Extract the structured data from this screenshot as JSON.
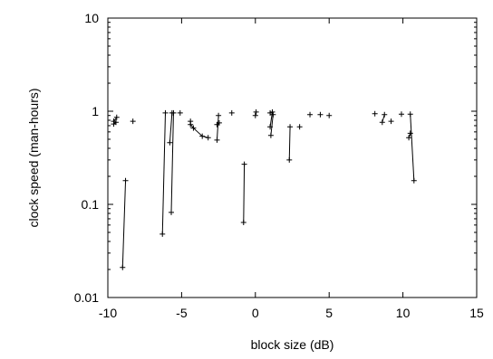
{
  "chart_data": {
    "type": "scatter",
    "title": "",
    "xlabel": "block size (dB)",
    "ylabel": "clock speed (man-hours)",
    "x_scale": "linear",
    "y_scale": "log",
    "xlim": [
      -10,
      15
    ],
    "ylim": [
      0.01,
      10
    ],
    "x_ticks": [
      -10,
      -5,
      0,
      5,
      10,
      15
    ],
    "x_tick_labels": [
      "-10",
      "-5",
      "0",
      "5",
      "10",
      "15"
    ],
    "y_ticks": [
      0.01,
      0.1,
      1,
      10
    ],
    "y_tick_labels": [
      "0.01",
      "0.1",
      "1",
      "10"
    ],
    "grid": false,
    "legend": "none",
    "marker": "plus",
    "colors": {
      "marks": "#000000",
      "axes": "#000000"
    },
    "series": [
      {
        "x": [
          -9.6,
          -9.4
        ],
        "y": [
          0.78,
          0.86
        ]
      },
      {
        "x": [
          -9.6,
          -9.45
        ],
        "y": [
          0.73,
          0.76
        ]
      },
      {
        "x": [
          -9.0,
          -8.8
        ],
        "y": [
          0.021,
          0.18
        ]
      },
      {
        "x": [
          -8.3
        ],
        "y": [
          0.78
        ]
      },
      {
        "x": [
          -6.3,
          -6.1
        ],
        "y": [
          0.048,
          0.96
        ]
      },
      {
        "x": [
          -5.8,
          -5.65
        ],
        "y": [
          0.46,
          0.96
        ]
      },
      {
        "x": [
          -5.7,
          -5.55
        ],
        "y": [
          0.082,
          0.96
        ]
      },
      {
        "x": [
          -5.1
        ],
        "y": [
          0.96
        ]
      },
      {
        "x": [
          -4.4,
          -4.4,
          -4.2,
          -3.6,
          -3.2
        ],
        "y": [
          0.78,
          0.72,
          0.66,
          0.54,
          0.52
        ]
      },
      {
        "x": [
          -2.6,
          -2.5
        ],
        "y": [
          0.49,
          0.9
        ]
      },
      {
        "x": [
          -2.6,
          -2.45
        ],
        "y": [
          0.72,
          0.75
        ]
      },
      {
        "x": [
          -1.6
        ],
        "y": [
          0.96
        ]
      },
      {
        "x": [
          -0.8,
          -0.75
        ],
        "y": [
          0.064,
          0.27
        ]
      },
      {
        "x": [
          0.0,
          0.05
        ],
        "y": [
          0.9,
          0.98
        ]
      },
      {
        "x": [
          1.0
        ],
        "y": [
          0.96
        ]
      },
      {
        "x": [
          1.05,
          1.2
        ],
        "y": [
          0.55,
          0.92
        ]
      },
      {
        "x": [
          1.0,
          1.15
        ],
        "y": [
          0.68,
          0.98
        ]
      },
      {
        "x": [
          2.3,
          2.35
        ],
        "y": [
          0.3,
          0.68
        ]
      },
      {
        "x": [
          3.0
        ],
        "y": [
          0.68
        ]
      },
      {
        "x": [
          3.7
        ],
        "y": [
          0.92
        ]
      },
      {
        "x": [
          4.4
        ],
        "y": [
          0.92
        ]
      },
      {
        "x": [
          5.0
        ],
        "y": [
          0.9
        ]
      },
      {
        "x": [
          8.1
        ],
        "y": [
          0.94
        ]
      },
      {
        "x": [
          8.6,
          8.75
        ],
        "y": [
          0.76,
          0.92
        ]
      },
      {
        "x": [
          9.2
        ],
        "y": [
          0.78
        ]
      },
      {
        "x": [
          9.9
        ],
        "y": [
          0.93
        ]
      },
      {
        "x": [
          10.4,
          10.5
        ],
        "y": [
          0.52,
          0.58
        ]
      },
      {
        "x": [
          10.5,
          10.75
        ],
        "y": [
          0.93,
          0.18
        ]
      }
    ]
  }
}
